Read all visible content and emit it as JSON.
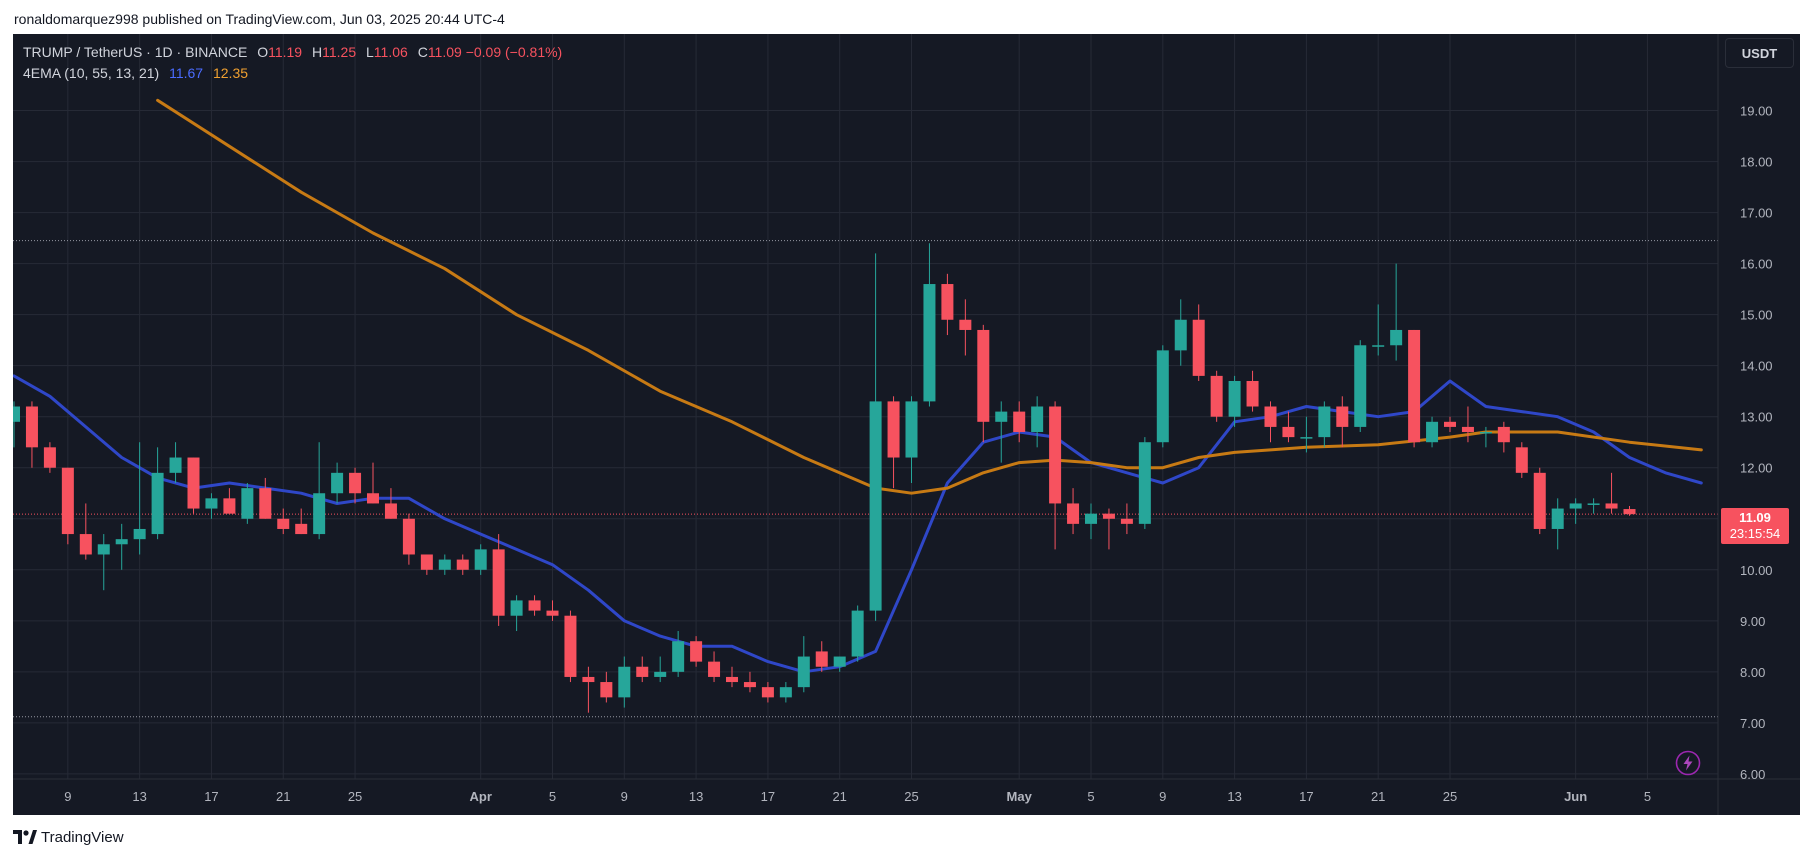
{
  "header": {
    "published_text": "ronaldomarquez998 published on TradingView.com, Jun 03, 2025 20:44 UTC-4"
  },
  "legend": {
    "symbol": "TRUMP / TetherUS · 1D · BINANCE",
    "o_label": "O",
    "o_value": "11.19",
    "h_label": "H",
    "h_value": "11.25",
    "l_label": "L",
    "l_value": "11.06",
    "c_label": "C",
    "c_value": "11.09",
    "change": "−0.09 (−0.81%)",
    "indicator": "4EMA (10, 55, 13, 21)",
    "ema_fast_value": "11.67",
    "ema_slow_value": "12.35"
  },
  "currency_button": "USDT",
  "price_tag": {
    "price": "11.09",
    "countdown": "23:15:54"
  },
  "footer": {
    "brand": "TradingView"
  },
  "colors": {
    "background": "#151924",
    "grid": "#262a36",
    "up": "#26a69a",
    "down": "#f7525f",
    "ema_fast": "#2f47c8",
    "ema_slow": "#c77a14",
    "axis_text": "#b2b5be"
  },
  "chart_data": {
    "type": "candlestick",
    "symbol": "TRUMP / TetherUS",
    "interval": "1D",
    "exchange": "BINANCE",
    "x_ticks": [
      "9",
      "13",
      "17",
      "21",
      "25",
      "Apr",
      "5",
      "9",
      "13",
      "17",
      "21",
      "25",
      "May",
      "5",
      "9",
      "13",
      "17",
      "21",
      "25",
      "Jun",
      "5"
    ],
    "y_ticks": [
      "6.00",
      "7.00",
      "8.00",
      "9.00",
      "10.00",
      "11.00",
      "12.00",
      "13.00",
      "14.00",
      "15.00",
      "16.00",
      "17.00",
      "18.00",
      "19.00"
    ],
    "ylim": [
      5.9,
      20.5
    ],
    "grid": true,
    "horizontal_levels": [
      16.45,
      7.12
    ],
    "candles": [
      {
        "date": "2025-03-06",
        "o": 12.9,
        "h": 13.3,
        "l": 12.4,
        "c": 13.2
      },
      {
        "date": "2025-03-07",
        "o": 13.2,
        "h": 13.3,
        "l": 12.0,
        "c": 12.4
      },
      {
        "date": "2025-03-08",
        "o": 12.4,
        "h": 12.5,
        "l": 11.9,
        "c": 12.0
      },
      {
        "date": "2025-03-09",
        "o": 12.0,
        "h": 12.0,
        "l": 10.5,
        "c": 10.7
      },
      {
        "date": "2025-03-10",
        "o": 10.7,
        "h": 11.3,
        "l": 10.2,
        "c": 10.3
      },
      {
        "date": "2025-03-11",
        "o": 10.3,
        "h": 10.7,
        "l": 9.6,
        "c": 10.5
      },
      {
        "date": "2025-03-12",
        "o": 10.5,
        "h": 10.9,
        "l": 10.0,
        "c": 10.6
      },
      {
        "date": "2025-03-13",
        "o": 10.6,
        "h": 12.5,
        "l": 10.3,
        "c": 10.8
      },
      {
        "date": "2025-03-14",
        "o": 10.7,
        "h": 12.4,
        "l": 10.6,
        "c": 11.9
      },
      {
        "date": "2025-03-15",
        "o": 11.9,
        "h": 12.5,
        "l": 11.7,
        "c": 12.2
      },
      {
        "date": "2025-03-16",
        "o": 12.2,
        "h": 12.2,
        "l": 11.1,
        "c": 11.2
      },
      {
        "date": "2025-03-17",
        "o": 11.2,
        "h": 11.5,
        "l": 11.0,
        "c": 11.4
      },
      {
        "date": "2025-03-18",
        "o": 11.4,
        "h": 11.6,
        "l": 11.1,
        "c": 11.1
      },
      {
        "date": "2025-03-19",
        "o": 11.0,
        "h": 11.7,
        "l": 10.9,
        "c": 11.6
      },
      {
        "date": "2025-03-20",
        "o": 11.6,
        "h": 11.8,
        "l": 11.0,
        "c": 11.0
      },
      {
        "date": "2025-03-21",
        "o": 11.0,
        "h": 11.2,
        "l": 10.7,
        "c": 10.8
      },
      {
        "date": "2025-03-22",
        "o": 10.9,
        "h": 11.2,
        "l": 10.7,
        "c": 10.7
      },
      {
        "date": "2025-03-23",
        "o": 10.7,
        "h": 12.5,
        "l": 10.6,
        "c": 11.5
      },
      {
        "date": "2025-03-24",
        "o": 11.5,
        "h": 12.1,
        "l": 11.3,
        "c": 11.9
      },
      {
        "date": "2025-03-25",
        "o": 11.9,
        "h": 12.0,
        "l": 11.3,
        "c": 11.5
      },
      {
        "date": "2025-03-26",
        "o": 11.5,
        "h": 12.1,
        "l": 11.3,
        "c": 11.3
      },
      {
        "date": "2025-03-27",
        "o": 11.3,
        "h": 11.6,
        "l": 11.0,
        "c": 11.0
      },
      {
        "date": "2025-03-28",
        "o": 11.0,
        "h": 11.1,
        "l": 10.1,
        "c": 10.3
      },
      {
        "date": "2025-03-29",
        "o": 10.3,
        "h": 10.3,
        "l": 9.9,
        "c": 10.0
      },
      {
        "date": "2025-03-30",
        "o": 10.0,
        "h": 10.3,
        "l": 9.9,
        "c": 10.2
      },
      {
        "date": "2025-03-31",
        "o": 10.2,
        "h": 10.3,
        "l": 9.9,
        "c": 10.0
      },
      {
        "date": "2025-04-01",
        "o": 10.0,
        "h": 10.5,
        "l": 9.9,
        "c": 10.4
      },
      {
        "date": "2025-04-02",
        "o": 10.4,
        "h": 10.7,
        "l": 8.9,
        "c": 9.1
      },
      {
        "date": "2025-04-03",
        "o": 9.1,
        "h": 9.5,
        "l": 8.8,
        "c": 9.4
      },
      {
        "date": "2025-04-04",
        "o": 9.4,
        "h": 9.5,
        "l": 9.1,
        "c": 9.2
      },
      {
        "date": "2025-04-05",
        "o": 9.2,
        "h": 9.4,
        "l": 9.0,
        "c": 9.1
      },
      {
        "date": "2025-04-06",
        "o": 9.1,
        "h": 9.2,
        "l": 7.8,
        "c": 7.9
      },
      {
        "date": "2025-04-07",
        "o": 7.9,
        "h": 8.1,
        "l": 7.2,
        "c": 7.8
      },
      {
        "date": "2025-04-08",
        "o": 7.8,
        "h": 8.0,
        "l": 7.4,
        "c": 7.5
      },
      {
        "date": "2025-04-09",
        "o": 7.5,
        "h": 8.3,
        "l": 7.3,
        "c": 8.1
      },
      {
        "date": "2025-04-10",
        "o": 8.1,
        "h": 8.3,
        "l": 7.8,
        "c": 7.9
      },
      {
        "date": "2025-04-11",
        "o": 7.9,
        "h": 8.3,
        "l": 7.8,
        "c": 8.0
      },
      {
        "date": "2025-04-12",
        "o": 8.0,
        "h": 8.8,
        "l": 7.9,
        "c": 8.6
      },
      {
        "date": "2025-04-13",
        "o": 8.6,
        "h": 8.7,
        "l": 8.1,
        "c": 8.2
      },
      {
        "date": "2025-04-14",
        "o": 8.2,
        "h": 8.4,
        "l": 7.8,
        "c": 7.9
      },
      {
        "date": "2025-04-15",
        "o": 7.9,
        "h": 8.1,
        "l": 7.7,
        "c": 7.8
      },
      {
        "date": "2025-04-16",
        "o": 7.8,
        "h": 8.0,
        "l": 7.6,
        "c": 7.7
      },
      {
        "date": "2025-04-17",
        "o": 7.7,
        "h": 7.8,
        "l": 7.4,
        "c": 7.5
      },
      {
        "date": "2025-04-18",
        "o": 7.5,
        "h": 7.8,
        "l": 7.4,
        "c": 7.7
      },
      {
        "date": "2025-04-19",
        "o": 7.7,
        "h": 8.7,
        "l": 7.6,
        "c": 8.3
      },
      {
        "date": "2025-04-20",
        "o": 8.4,
        "h": 8.6,
        "l": 8.0,
        "c": 8.1
      },
      {
        "date": "2025-04-21",
        "o": 8.1,
        "h": 8.3,
        "l": 8.0,
        "c": 8.3
      },
      {
        "date": "2025-04-22",
        "o": 8.3,
        "h": 9.3,
        "l": 8.2,
        "c": 9.2
      },
      {
        "date": "2025-04-23",
        "o": 9.2,
        "h": 16.2,
        "l": 9.0,
        "c": 13.3
      },
      {
        "date": "2025-04-24",
        "o": 13.3,
        "h": 13.4,
        "l": 11.6,
        "c": 12.2
      },
      {
        "date": "2025-04-25",
        "o": 12.2,
        "h": 13.4,
        "l": 11.7,
        "c": 13.3
      },
      {
        "date": "2025-04-26",
        "o": 13.3,
        "h": 16.4,
        "l": 13.2,
        "c": 15.6
      },
      {
        "date": "2025-04-27",
        "o": 15.6,
        "h": 15.8,
        "l": 14.6,
        "c": 14.9
      },
      {
        "date": "2025-04-28",
        "o": 14.9,
        "h": 15.3,
        "l": 14.2,
        "c": 14.7
      },
      {
        "date": "2025-04-29",
        "o": 14.7,
        "h": 14.8,
        "l": 12.5,
        "c": 12.9
      },
      {
        "date": "2025-04-30",
        "o": 12.9,
        "h": 13.3,
        "l": 12.1,
        "c": 13.1
      },
      {
        "date": "2025-05-01",
        "o": 13.1,
        "h": 13.3,
        "l": 12.5,
        "c": 12.7
      },
      {
        "date": "2025-05-02",
        "o": 12.7,
        "h": 13.4,
        "l": 12.4,
        "c": 13.2
      },
      {
        "date": "2025-05-03",
        "o": 13.2,
        "h": 13.3,
        "l": 10.4,
        "c": 11.3
      },
      {
        "date": "2025-05-04",
        "o": 11.3,
        "h": 11.6,
        "l": 10.7,
        "c": 10.9
      },
      {
        "date": "2025-05-05",
        "o": 10.9,
        "h": 11.3,
        "l": 10.6,
        "c": 11.1
      },
      {
        "date": "2025-05-06",
        "o": 11.1,
        "h": 11.2,
        "l": 10.4,
        "c": 11.0
      },
      {
        "date": "2025-05-07",
        "o": 11.0,
        "h": 11.3,
        "l": 10.7,
        "c": 10.9
      },
      {
        "date": "2025-05-08",
        "o": 10.9,
        "h": 12.6,
        "l": 10.8,
        "c": 12.5
      },
      {
        "date": "2025-05-09",
        "o": 12.5,
        "h": 14.4,
        "l": 12.4,
        "c": 14.3
      },
      {
        "date": "2025-05-10",
        "o": 14.3,
        "h": 15.3,
        "l": 14.0,
        "c": 14.9
      },
      {
        "date": "2025-05-11",
        "o": 14.9,
        "h": 15.2,
        "l": 13.7,
        "c": 13.8
      },
      {
        "date": "2025-05-12",
        "o": 13.8,
        "h": 13.9,
        "l": 12.9,
        "c": 13.0
      },
      {
        "date": "2025-05-13",
        "o": 13.0,
        "h": 13.8,
        "l": 12.8,
        "c": 13.7
      },
      {
        "date": "2025-05-14",
        "o": 13.7,
        "h": 13.9,
        "l": 13.1,
        "c": 13.2
      },
      {
        "date": "2025-05-15",
        "o": 13.2,
        "h": 13.3,
        "l": 12.5,
        "c": 12.8
      },
      {
        "date": "2025-05-16",
        "o": 12.8,
        "h": 13.1,
        "l": 12.5,
        "c": 12.6
      },
      {
        "date": "2025-05-17",
        "o": 12.6,
        "h": 13.0,
        "l": 12.3,
        "c": 12.6
      },
      {
        "date": "2025-05-18",
        "o": 12.6,
        "h": 13.3,
        "l": 12.4,
        "c": 13.2
      },
      {
        "date": "2025-05-19",
        "o": 13.2,
        "h": 13.4,
        "l": 12.4,
        "c": 12.8
      },
      {
        "date": "2025-05-20",
        "o": 12.8,
        "h": 14.5,
        "l": 12.7,
        "c": 14.4
      },
      {
        "date": "2025-05-21",
        "o": 14.4,
        "h": 15.2,
        "l": 14.2,
        "c": 14.4
      },
      {
        "date": "2025-05-22",
        "o": 14.4,
        "h": 16.0,
        "l": 14.1,
        "c": 14.7
      },
      {
        "date": "2025-05-23",
        "o": 14.7,
        "h": 14.7,
        "l": 12.4,
        "c": 12.5
      },
      {
        "date": "2025-05-24",
        "o": 12.5,
        "h": 13.0,
        "l": 12.4,
        "c": 12.9
      },
      {
        "date": "2025-05-25",
        "o": 12.9,
        "h": 13.0,
        "l": 12.7,
        "c": 12.8
      },
      {
        "date": "2025-05-26",
        "o": 12.8,
        "h": 13.2,
        "l": 12.5,
        "c": 12.7
      },
      {
        "date": "2025-05-27",
        "o": 12.7,
        "h": 12.8,
        "l": 12.4,
        "c": 12.7
      },
      {
        "date": "2025-05-28",
        "o": 12.8,
        "h": 12.9,
        "l": 12.3,
        "c": 12.5
      },
      {
        "date": "2025-05-29",
        "o": 12.4,
        "h": 12.5,
        "l": 11.8,
        "c": 11.9
      },
      {
        "date": "2025-05-30",
        "o": 11.9,
        "h": 12.0,
        "l": 10.7,
        "c": 10.8
      },
      {
        "date": "2025-05-31",
        "o": 10.8,
        "h": 11.4,
        "l": 10.4,
        "c": 11.2
      },
      {
        "date": "2025-06-01",
        "o": 11.2,
        "h": 11.4,
        "l": 10.9,
        "c": 11.3
      },
      {
        "date": "2025-06-02",
        "o": 11.3,
        "h": 11.4,
        "l": 11.1,
        "c": 11.3
      },
      {
        "date": "2025-06-03",
        "o": 11.3,
        "h": 11.9,
        "l": 11.1,
        "c": 11.2
      },
      {
        "date": "2025-06-04",
        "o": 11.19,
        "h": 11.25,
        "l": 11.06,
        "c": 11.09
      }
    ],
    "series": [
      {
        "values": [
          [
            0,
            13.8
          ],
          [
            2,
            13.4
          ],
          [
            4,
            12.8
          ],
          [
            6,
            12.2
          ],
          [
            8,
            11.8
          ],
          [
            10,
            11.6
          ],
          [
            12,
            11.7
          ],
          [
            14,
            11.6
          ],
          [
            16,
            11.5
          ],
          [
            18,
            11.3
          ],
          [
            20,
            11.4
          ],
          [
            22,
            11.4
          ],
          [
            24,
            11.0
          ],
          [
            26,
            10.7
          ],
          [
            28,
            10.4
          ],
          [
            30,
            10.1
          ],
          [
            32,
            9.6
          ],
          [
            34,
            9.0
          ],
          [
            36,
            8.7
          ],
          [
            38,
            8.5
          ],
          [
            40,
            8.5
          ],
          [
            42,
            8.2
          ],
          [
            44,
            8.0
          ],
          [
            46,
            8.1
          ],
          [
            48,
            8.4
          ],
          [
            50,
            10.0
          ],
          [
            52,
            11.7
          ],
          [
            54,
            12.5
          ],
          [
            56,
            12.7
          ],
          [
            58,
            12.6
          ],
          [
            60,
            12.1
          ],
          [
            62,
            11.9
          ],
          [
            64,
            11.7
          ],
          [
            66,
            12.0
          ],
          [
            68,
            12.9
          ],
          [
            70,
            13.0
          ],
          [
            72,
            13.2
          ],
          [
            74,
            13.1
          ],
          [
            76,
            13.0
          ],
          [
            78,
            13.1
          ],
          [
            80,
            13.7
          ],
          [
            82,
            13.2
          ],
          [
            84,
            13.1
          ],
          [
            86,
            13.0
          ],
          [
            88,
            12.7
          ],
          [
            90,
            12.2
          ],
          [
            92,
            11.9
          ],
          [
            94,
            11.7
          ]
        ]
      },
      {
        "values": [
          [
            8,
            19.2
          ],
          [
            12,
            18.3
          ],
          [
            16,
            17.4
          ],
          [
            20,
            16.6
          ],
          [
            24,
            15.9
          ],
          [
            28,
            15.0
          ],
          [
            32,
            14.3
          ],
          [
            36,
            13.5
          ],
          [
            40,
            12.9
          ],
          [
            44,
            12.2
          ],
          [
            48,
            11.6
          ],
          [
            50,
            11.5
          ],
          [
            52,
            11.6
          ],
          [
            54,
            11.9
          ],
          [
            56,
            12.1
          ],
          [
            58,
            12.15
          ],
          [
            60,
            12.1
          ],
          [
            62,
            12.0
          ],
          [
            64,
            12.0
          ],
          [
            66,
            12.2
          ],
          [
            68,
            12.3
          ],
          [
            70,
            12.35
          ],
          [
            72,
            12.4
          ],
          [
            76,
            12.45
          ],
          [
            80,
            12.6
          ],
          [
            82,
            12.7
          ],
          [
            86,
            12.7
          ],
          [
            90,
            12.5
          ],
          [
            94,
            12.35
          ]
        ]
      }
    ]
  }
}
